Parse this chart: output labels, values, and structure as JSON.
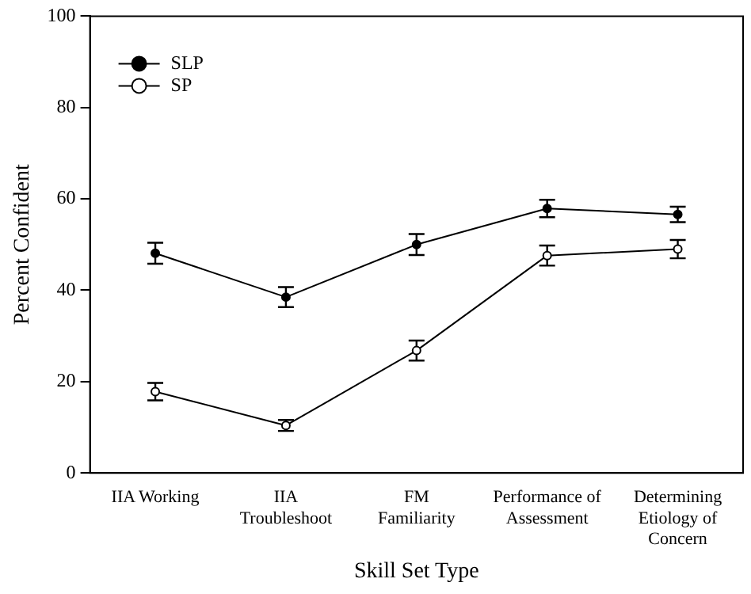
{
  "chart_data": {
    "type": "line",
    "xlabel": "Skill Set Type",
    "ylabel": "Percent Confident",
    "categories": [
      "IIA Working",
      "IIA\nTroubleshoot",
      "FM\nFamiliarity",
      "Performance of\nAssessment",
      "Determining\nEtiology of\nConcern"
    ],
    "series": [
      {
        "name": "SLP",
        "color": "#000000",
        "values": [
          48.1,
          38.5,
          50,
          57.9,
          56.6
        ],
        "errors": [
          2.3,
          2.2,
          2.3,
          1.9,
          1.7
        ]
      },
      {
        "name": "SP",
        "color": "#000000",
        "values": [
          17.8,
          10.4,
          26.8,
          47.6,
          49
        ],
        "errors": [
          1.9,
          1.2,
          2.2,
          2.2,
          2
        ]
      }
    ],
    "ylim": [
      0,
      100
    ],
    "yticks": [
      0,
      20,
      40,
      60,
      80,
      100
    ],
    "grid": false,
    "legend": "top left",
    "marker": "circle",
    "line_style": "solid"
  }
}
